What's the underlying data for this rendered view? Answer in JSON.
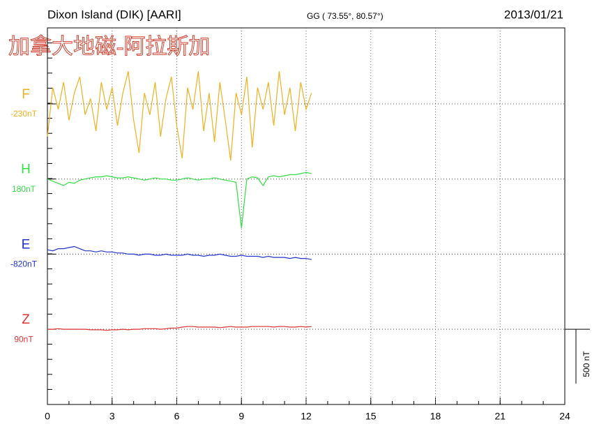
{
  "title": "Dixon Island (DIK)  [AARI]",
  "coordinates": "GG ( 73.55°,  80.57°)",
  "date": "2013/01/21",
  "watermark": "加拿大地磁-阿拉斯加",
  "chart_data": {
    "type": "line",
    "x": [
      0,
      0.25,
      0.5,
      0.75,
      1,
      1.25,
      1.5,
      1.75,
      2,
      2.25,
      2.5,
      2.75,
      3,
      3.25,
      3.5,
      3.75,
      4,
      4.25,
      4.5,
      4.75,
      5,
      5.25,
      5.5,
      5.75,
      6,
      6.25,
      6.5,
      6.75,
      7,
      7.25,
      7.5,
      7.75,
      8,
      8.25,
      8.5,
      8.75,
      9,
      9.25,
      9.5,
      9.75,
      10,
      10.25,
      10.5,
      10.75,
      11,
      11.25,
      11.5,
      11.75,
      12,
      12.25
    ],
    "xlim": [
      0,
      24
    ],
    "xticks": [
      0,
      3,
      6,
      9,
      12,
      15,
      18,
      21,
      24
    ],
    "grid": true,
    "scale_bar": {
      "value": 500,
      "label": "500 nT"
    },
    "series": [
      {
        "name": "F",
        "baseline_label": "-230nT",
        "color": "#f0b020",
        "values": [
          -300,
          150,
          -50,
          200,
          -150,
          100,
          250,
          -100,
          50,
          -250,
          200,
          -50,
          150,
          -200,
          100,
          300,
          -150,
          -450,
          100,
          -100,
          200,
          -300,
          50,
          250,
          -200,
          -500,
          150,
          -50,
          300,
          -250,
          100,
          -350,
          200,
          -150,
          -520,
          100,
          -100,
          250,
          -400,
          150,
          -50,
          200,
          -200,
          300,
          -100,
          150,
          -250,
          200,
          -50,
          100
        ]
      },
      {
        "name": "H",
        "baseline_label": "180nT",
        "color": "#33dd44",
        "values": [
          0,
          -20,
          -40,
          -60,
          -30,
          -40,
          -10,
          0,
          10,
          20,
          20,
          30,
          20,
          10,
          10,
          20,
          10,
          0,
          -10,
          0,
          10,
          0,
          0,
          -10,
          -10,
          0,
          10,
          0,
          -10,
          0,
          0,
          10,
          0,
          -10,
          -20,
          -30,
          -450,
          0,
          20,
          10,
          -60,
          20,
          30,
          20,
          30,
          40,
          40,
          50,
          60,
          50
        ]
      },
      {
        "name": "E",
        "baseline_label": "-820nT",
        "color": "#2233cc",
        "values": [
          40,
          30,
          50,
          50,
          60,
          70,
          50,
          30,
          30,
          20,
          30,
          20,
          20,
          10,
          10,
          0,
          0,
          -10,
          0,
          0,
          -10,
          -10,
          0,
          -10,
          -10,
          -10,
          0,
          -10,
          -10,
          -20,
          -10,
          -10,
          0,
          -10,
          -20,
          -20,
          -10,
          -20,
          -20,
          -20,
          -30,
          -20,
          -30,
          -30,
          -30,
          -40,
          -30,
          -40,
          -40,
          -50
        ]
      },
      {
        "name": "Z",
        "baseline_label": "90nT",
        "color": "#dd3333",
        "values": [
          0,
          0,
          5,
          0,
          0,
          0,
          0,
          0,
          -5,
          -5,
          -5,
          -10,
          -5,
          -5,
          0,
          -5,
          0,
          0,
          5,
          5,
          5,
          0,
          5,
          10,
          10,
          20,
          25,
          25,
          20,
          20,
          20,
          20,
          15,
          20,
          25,
          20,
          20,
          20,
          25,
          25,
          25,
          25,
          20,
          25,
          25,
          20,
          20,
          25,
          20,
          25
        ]
      }
    ]
  }
}
